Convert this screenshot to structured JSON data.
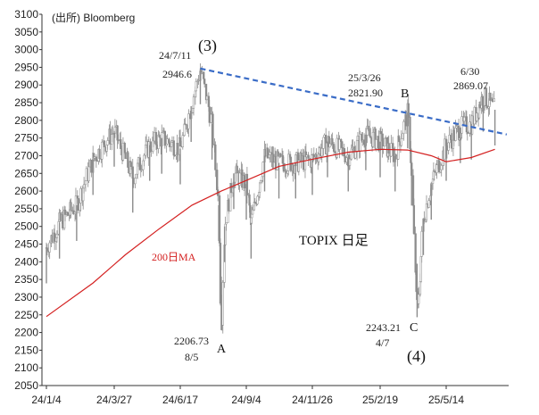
{
  "chart_data": {
    "type": "line",
    "title": "TOPIX 日足",
    "source": "(出所) Bloomberg",
    "ylim": [
      2050,
      3100
    ],
    "y_ticks": [
      2050,
      2100,
      2150,
      2200,
      2250,
      2300,
      2350,
      2400,
      2450,
      2500,
      2550,
      2600,
      2650,
      2700,
      2750,
      2800,
      2850,
      2900,
      2950,
      3000,
      3050,
      3100
    ],
    "x_ticks": [
      "24/1/4",
      "24/3/27",
      "24/6/17",
      "24/9/4",
      "24/11/26",
      "25/2/19",
      "25/5/14"
    ],
    "grid": false,
    "series": [
      {
        "name": "",
        "color": "#8c8c8c",
        "style": "daily candles",
        "points": [
          {
            "x": "24/1/4",
            "y": 2440
          },
          {
            "x": "24/1/20",
            "y": 2510
          },
          {
            "x": "24/2/10",
            "y": 2560
          },
          {
            "x": "24/3/1",
            "y": 2690
          },
          {
            "x": "24/3/27",
            "y": 2770
          },
          {
            "x": "24/4/19",
            "y": 2640
          },
          {
            "x": "24/5/10",
            "y": 2730
          },
          {
            "x": "24/5/25",
            "y": 2750
          },
          {
            "x": "24/6/17",
            "y": 2720
          },
          {
            "x": "24/6/30",
            "y": 2840
          },
          {
            "x": "24/7/11",
            "y": 2946.6
          },
          {
            "x": "24/7/25",
            "y": 2790
          },
          {
            "x": "24/8/2",
            "y": 2560
          },
          {
            "x": "24/8/5",
            "y": 2206.73
          },
          {
            "x": "24/8/9",
            "y": 2500
          },
          {
            "x": "24/8/20",
            "y": 2650
          },
          {
            "x": "24/9/4",
            "y": 2620
          },
          {
            "x": "24/9/10",
            "y": 2510
          },
          {
            "x": "24/9/27",
            "y": 2700
          },
          {
            "x": "24/10/15",
            "y": 2680
          },
          {
            "x": "24/11/5",
            "y": 2680
          },
          {
            "x": "24/11/26",
            "y": 2690
          },
          {
            "x": "24/12/15",
            "y": 2740
          },
          {
            "x": "25/1/10",
            "y": 2700
          },
          {
            "x": "25/2/1",
            "y": 2760
          },
          {
            "x": "25/2/19",
            "y": 2740
          },
          {
            "x": "25/3/10",
            "y": 2700
          },
          {
            "x": "25/3/26",
            "y": 2821.9
          },
          {
            "x": "25/3/31",
            "y": 2660
          },
          {
            "x": "25/4/7",
            "y": 2243.21
          },
          {
            "x": "25/4/15",
            "y": 2520
          },
          {
            "x": "25/4/25",
            "y": 2620
          },
          {
            "x": "25/5/14",
            "y": 2730
          },
          {
            "x": "25/6/1",
            "y": 2780
          },
          {
            "x": "25/6/15",
            "y": 2790
          },
          {
            "x": "25/6/30",
            "y": 2869.07
          },
          {
            "x": "25/7/15",
            "y": 2830
          }
        ]
      },
      {
        "name": "200日MA",
        "color": "#d42020",
        "points": [
          {
            "x": "24/1/4",
            "y": 2245
          },
          {
            "x": "24/3/1",
            "y": 2340
          },
          {
            "x": "24/4/10",
            "y": 2420
          },
          {
            "x": "24/5/20",
            "y": 2490
          },
          {
            "x": "24/7/1",
            "y": 2560
          },
          {
            "x": "24/8/5",
            "y": 2600
          },
          {
            "x": "24/9/4",
            "y": 2630
          },
          {
            "x": "24/10/15",
            "y": 2670
          },
          {
            "x": "24/11/26",
            "y": 2690
          },
          {
            "x": "25/1/10",
            "y": 2710
          },
          {
            "x": "25/2/19",
            "y": 2718
          },
          {
            "x": "25/3/26",
            "y": 2716
          },
          {
            "x": "25/4/25",
            "y": 2700
          },
          {
            "x": "25/5/14",
            "y": 2683
          },
          {
            "x": "25/6/15",
            "y": 2695
          },
          {
            "x": "25/7/15",
            "y": 2718
          }
        ]
      }
    ],
    "trendline": {
      "from": {
        "x": "24/7/11",
        "y": 2946.6
      },
      "to": {
        "x": "25/7/30",
        "y": 2760
      },
      "color": "#3a6cc7",
      "style": "dashed"
    },
    "annotations": [
      {
        "date": "24/7/11",
        "value": "2946.6",
        "mark": "(3)"
      },
      {
        "date": "25/3/26",
        "value": "2821.90",
        "mark": "B"
      },
      {
        "date": "6/30",
        "value": "2869.07"
      },
      {
        "date": "8/5",
        "value": "2206.73",
        "mark": "A"
      },
      {
        "date": "4/7",
        "value": "2243.21",
        "mark": "C"
      },
      {
        "mark": "(4)"
      }
    ]
  }
}
